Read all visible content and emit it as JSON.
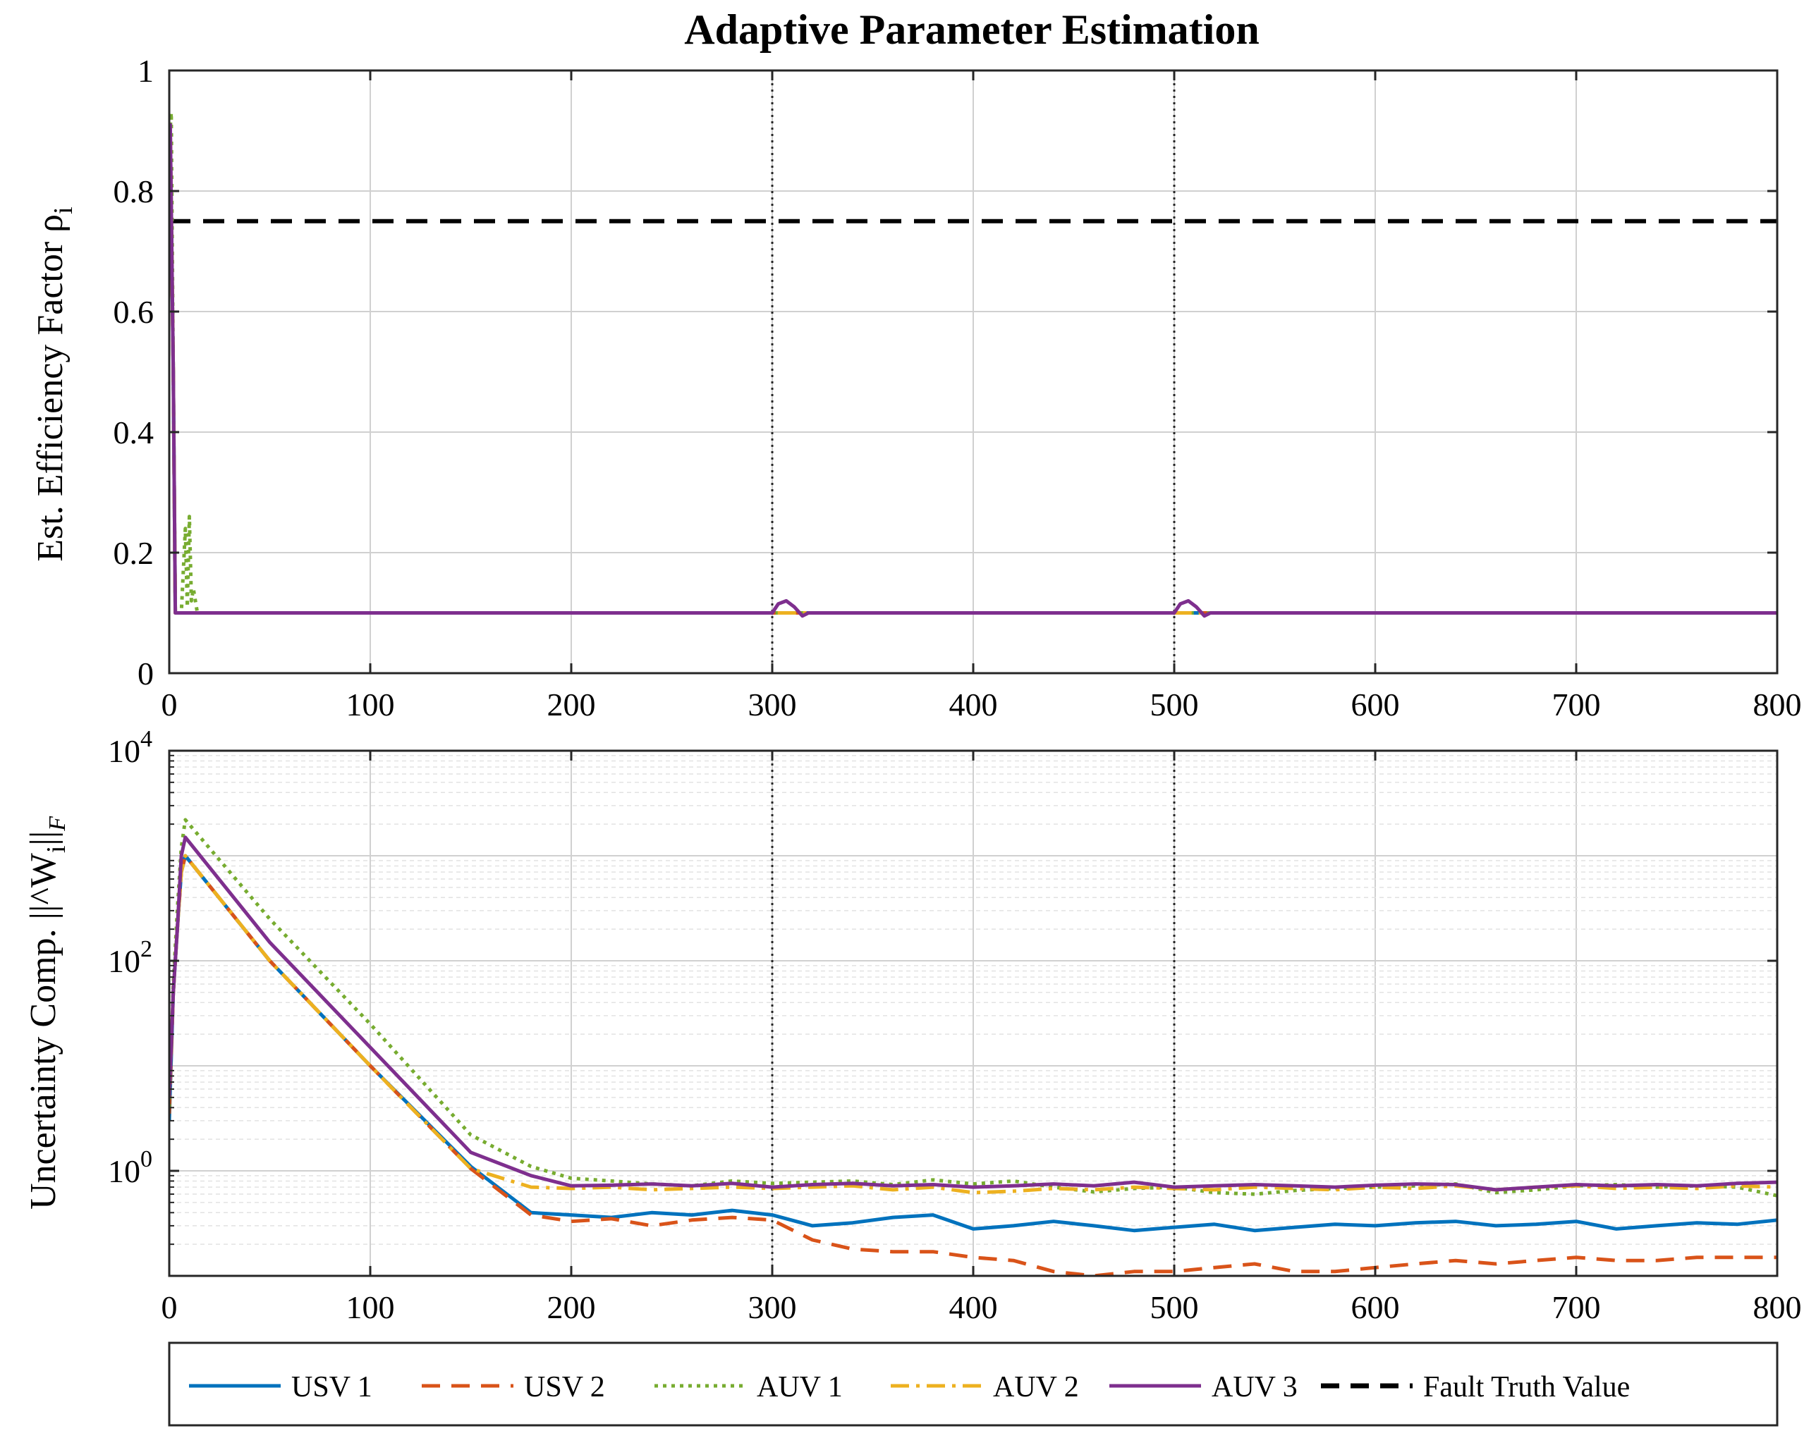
{
  "chart_data": {
    "title": "Adaptive Parameter Estimation",
    "legend": {
      "placement": "bottom-outside",
      "entries": [
        "USV 1",
        "USV 2",
        "AUV 1",
        "AUV 2",
        "AUV 3",
        "Fault Truth Value"
      ]
    },
    "series_styles": [
      {
        "name": "USV 1",
        "color": "#0072BD",
        "dash": "solid"
      },
      {
        "name": "USV 2",
        "color": "#D95319",
        "dash": "dashed"
      },
      {
        "name": "AUV 1",
        "color": "#77AC30",
        "dash": "dotted"
      },
      {
        "name": "AUV 2",
        "color": "#EDB120",
        "dash": "dashdot"
      },
      {
        "name": "AUV 3",
        "color": "#7E2F8E",
        "dash": "solid"
      },
      {
        "name": "Fault Truth Value",
        "color": "#000000",
        "dash": "dashed"
      }
    ],
    "panels": [
      {
        "type": "line",
        "ylabel": "Est. Efficiency Factor ρ",
        "ylabel_sub": "i",
        "xlim": [
          0,
          800
        ],
        "ylim": [
          0,
          1
        ],
        "grid": true,
        "xticks": [
          "0",
          "100",
          "200",
          "300",
          "400",
          "500",
          "600",
          "700",
          "800"
        ],
        "yticks": [
          "0",
          "0.2",
          "0.4",
          "0.6",
          "0.8",
          "1"
        ],
        "event_lines_x": [
          300,
          500
        ],
        "fault_truth_value": 0.75,
        "series": [
          {
            "name": "USV 1",
            "x": [
              0,
              0.5,
              2,
              3,
              800
            ],
            "y": [
              0.85,
              0.9,
              0.5,
              0.1,
              0.1
            ]
          },
          {
            "name": "USV 2",
            "x": [
              0,
              0.5,
              2,
              3,
              800
            ],
            "y": [
              0.85,
              0.9,
              0.5,
              0.1,
              0.1
            ]
          },
          {
            "name": "AUV 1",
            "x": [
              0,
              1,
              2,
              3,
              6,
              8,
              9,
              10,
              11,
              12,
              14,
              800
            ],
            "y": [
              0.88,
              0.93,
              0.5,
              0.1,
              0.1,
              0.24,
              0.11,
              0.26,
              0.12,
              0.14,
              0.1,
              0.1
            ]
          },
          {
            "name": "AUV 2",
            "x": [
              0,
              0.5,
              2,
              3,
              800
            ],
            "y": [
              0.85,
              0.9,
              0.5,
              0.1,
              0.1
            ]
          },
          {
            "name": "AUV 3",
            "x": [
              0,
              0.5,
              2,
              3,
              300,
              303,
              307,
              311,
              315,
              318,
              500,
              503,
              507,
              511,
              515,
              518,
              800
            ],
            "y": [
              0.86,
              0.91,
              0.5,
              0.1,
              0.1,
              0.115,
              0.12,
              0.11,
              0.095,
              0.1,
              0.1,
              0.115,
              0.12,
              0.11,
              0.095,
              0.1,
              0.1
            ]
          }
        ]
      },
      {
        "type": "line",
        "yscale": "log",
        "ylabel": "Uncertainty Comp. ||^W",
        "ylabel_sub": "i",
        "ylabel_tail": "||",
        "ylabel_sub2": "F",
        "xlim": [
          0,
          800
        ],
        "ylim": [
          0.1,
          10000
        ],
        "grid": true,
        "xticks": [
          "0",
          "100",
          "200",
          "300",
          "400",
          "500",
          "600",
          "700",
          "800"
        ],
        "yticks": [
          {
            "value": 1,
            "base": "10",
            "exp": "0"
          },
          {
            "value": 100,
            "base": "10",
            "exp": "2"
          },
          {
            "value": 10000,
            "base": "10",
            "exp": "4"
          }
        ],
        "event_lines_x": [
          300,
          500
        ],
        "series": [
          {
            "name": "USV 1",
            "x": [
              0,
              2,
              4,
              6,
              8,
              50,
              100,
              150,
              180,
              200,
              220,
              240,
              260,
              280,
              300,
              320,
              340,
              360,
              380,
              400,
              420,
              440,
              460,
              480,
              500,
              520,
              540,
              560,
              580,
              600,
              620,
              640,
              660,
              680,
              700,
              720,
              740,
              760,
              780,
              800
            ],
            "y": [
              3,
              50,
              200,
              700,
              1000,
              100,
              10,
              1.1,
              0.4,
              0.38,
              0.36,
              0.4,
              0.38,
              0.42,
              0.38,
              0.3,
              0.32,
              0.36,
              0.38,
              0.28,
              0.3,
              0.33,
              0.3,
              0.27,
              0.29,
              0.31,
              0.27,
              0.29,
              0.31,
              0.3,
              0.32,
              0.33,
              0.3,
              0.31,
              0.33,
              0.28,
              0.3,
              0.32,
              0.31,
              0.34
            ]
          },
          {
            "name": "USV 2",
            "x": [
              0,
              2,
              4,
              6,
              8,
              50,
              100,
              150,
              180,
              200,
              220,
              240,
              260,
              280,
              300,
              320,
              340,
              360,
              380,
              400,
              420,
              440,
              460,
              480,
              500,
              520,
              540,
              560,
              580,
              600,
              620,
              640,
              660,
              680,
              700,
              720,
              740,
              760,
              780,
              800
            ],
            "y": [
              3.5,
              50,
              200,
              700,
              1000,
              100,
              10,
              1.05,
              0.38,
              0.33,
              0.35,
              0.3,
              0.34,
              0.36,
              0.34,
              0.22,
              0.18,
              0.17,
              0.17,
              0.15,
              0.14,
              0.11,
              0.1,
              0.11,
              0.11,
              0.12,
              0.13,
              0.11,
              0.11,
              0.12,
              0.13,
              0.14,
              0.13,
              0.14,
              0.15,
              0.14,
              0.14,
              0.15,
              0.15,
              0.15
            ]
          },
          {
            "name": "AUV 1",
            "x": [
              0,
              2,
              4,
              6,
              8,
              50,
              100,
              150,
              180,
              200,
              220,
              240,
              260,
              280,
              300,
              320,
              340,
              360,
              380,
              400,
              420,
              440,
              460,
              480,
              500,
              520,
              540,
              560,
              580,
              600,
              620,
              640,
              660,
              680,
              700,
              720,
              740,
              760,
              780,
              800
            ],
            "y": [
              4,
              60,
              300,
              1200,
              2200,
              250,
              25,
              2.2,
              1.1,
              0.85,
              0.8,
              0.75,
              0.72,
              0.8,
              0.76,
              0.78,
              0.8,
              0.74,
              0.82,
              0.75,
              0.8,
              0.7,
              0.63,
              0.68,
              0.7,
              0.62,
              0.6,
              0.65,
              0.68,
              0.7,
              0.72,
              0.75,
              0.62,
              0.66,
              0.72,
              0.74,
              0.7,
              0.72,
              0.7,
              0.58
            ]
          },
          {
            "name": "AUV 2",
            "x": [
              0,
              2,
              4,
              6,
              8,
              50,
              100,
              150,
              180,
              200,
              220,
              240,
              260,
              280,
              300,
              320,
              340,
              360,
              380,
              400,
              420,
              440,
              460,
              480,
              500,
              520,
              540,
              560,
              580,
              600,
              620,
              640,
              660,
              680,
              700,
              720,
              740,
              760,
              780,
              800
            ],
            "y": [
              5,
              50,
              200,
              700,
              1000,
              100,
              10,
              1.05,
              0.7,
              0.68,
              0.7,
              0.66,
              0.68,
              0.7,
              0.68,
              0.7,
              0.72,
              0.66,
              0.7,
              0.62,
              0.64,
              0.68,
              0.66,
              0.7,
              0.68,
              0.66,
              0.7,
              0.68,
              0.66,
              0.7,
              0.68,
              0.72,
              0.66,
              0.7,
              0.72,
              0.68,
              0.7,
              0.68,
              0.72,
              0.7
            ]
          },
          {
            "name": "AUV 3",
            "x": [
              0,
              2,
              4,
              6,
              8,
              50,
              100,
              150,
              180,
              200,
              220,
              240,
              260,
              280,
              300,
              320,
              340,
              360,
              380,
              400,
              420,
              440,
              460,
              480,
              500,
              520,
              540,
              560,
              580,
              600,
              620,
              640,
              660,
              680,
              700,
              720,
              740,
              760,
              780,
              800
            ],
            "y": [
              5,
              50,
              200,
              1000,
              1500,
              150,
              15,
              1.5,
              0.9,
              0.72,
              0.73,
              0.75,
              0.72,
              0.76,
              0.7,
              0.74,
              0.76,
              0.72,
              0.74,
              0.7,
              0.72,
              0.75,
              0.72,
              0.78,
              0.7,
              0.72,
              0.74,
              0.72,
              0.7,
              0.73,
              0.75,
              0.74,
              0.66,
              0.7,
              0.74,
              0.72,
              0.74,
              0.72,
              0.76,
              0.78
            ]
          }
        ]
      }
    ]
  }
}
